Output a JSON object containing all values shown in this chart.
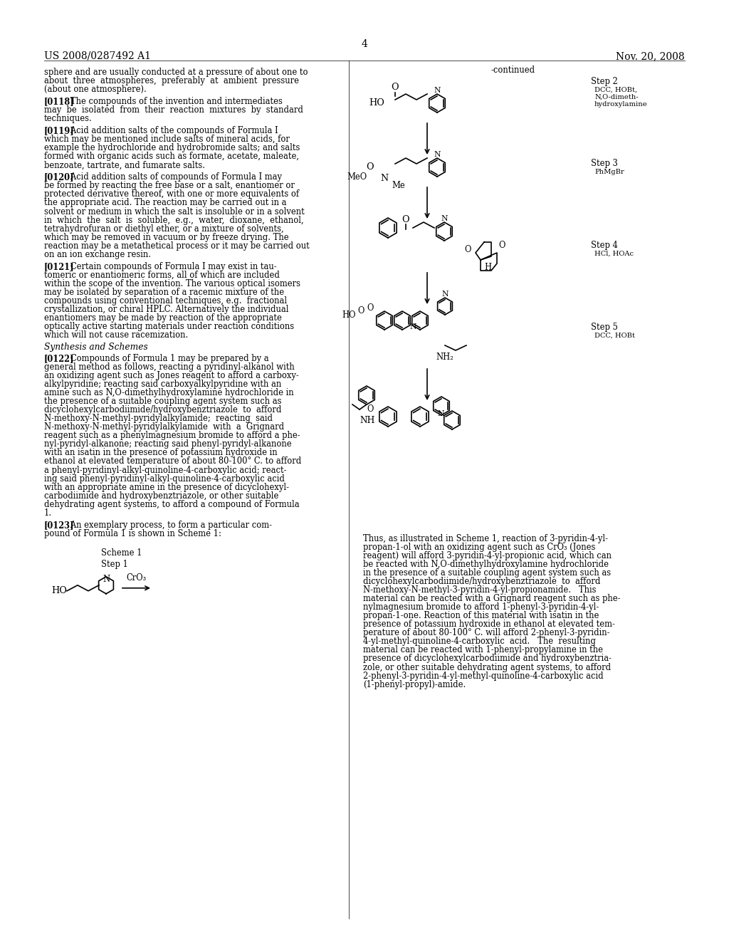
{
  "page_number": "4",
  "patent_number": "US 2008/0287492 A1",
  "patent_date": "Nov. 20, 2008",
  "background_color": "#ffffff",
  "text_color": "#000000",
  "figsize": [
    10.24,
    13.2
  ],
  "dpi": 100,
  "left_column_text": [
    {
      "type": "paragraph",
      "text": "sphere and are usually conducted at a pressure of about one to\nabout  three  atmospheres,  preferably  at  ambient  pressure\n(about one atmosphere)."
    },
    {
      "type": "paragraph_bold_start",
      "bold": "[0118]",
      "text": "   The compounds of the invention and intermediates\nmay  be  isolated  from  their  reaction  mixtures  by  standard\ntechniques."
    },
    {
      "type": "paragraph_bold_start",
      "bold": "[0119]",
      "text": "   Acid addition salts of the compounds of Formula I\nwhich may be mentioned include salts of mineral acids, for\nexample the hydrochloride and hydrobromide salts; and salts\nformed with organic acids such as formate, acetate, maleate,\nbenzoate, tartrate, and fumarate salts."
    },
    {
      "type": "paragraph_bold_start",
      "bold": "[0120]",
      "text": "   Acid addition salts of compounds of Formula I may\nbe formed by reacting the free base or a salt, enantiomer or\nprotected derivative thereof, with one or more equivalents of\nthe appropriate acid. The reaction may be carried out in a\nsolvent or medium in which the salt is insoluble or in a solvent\nin  which  the  salt  is  soluble,  e.g.,  water,  dioxane,  ethanol,\ntetrahydrofuran or diethyl ether, or a mixture of solvents,\nwhich may be removed in vacuum or by freeze drying. The\nreaction may be a metathetical process or it may be carried out\non an ion exchange resin."
    },
    {
      "type": "paragraph_bold_start",
      "bold": "[0121]",
      "text": "   Certain compounds of Formula I may exist in tau-\ntomeric or enantiomeric forms, all of which are included\nwithin the scope of the invention. The various optical isomers\nmay be isolated by separation of a racemic mixture of the\ncompounds using conventional techniques, e.g.  fractional\ncrystallization, or chiral HPLC. Alternatively the individual\nenantiomers may be made by reaction of the appropriate\noptically active starting materials under reaction conditions\nwhich will not cause racemization."
    },
    {
      "type": "section_header",
      "text": "Synthesis and Schemes"
    },
    {
      "type": "paragraph_bold_start",
      "bold": "[0122]",
      "text": "   Compounds of Formula 1 may be prepared by a\ngeneral method as follows, reacting a pyridinyl-alkanol with\nan oxidizing agent such as Jones reagent to afford a carboxy-\nalkylpyridine; reacting said carboxyalkylpyridine with an\namine such as N,O-dimethylhydroxylamine hydrochloride in\nthe presence of a suitable coupling agent system such as\ndicyclohexylcarbodiimide/hydroxybenztriazole  to  afford\nN-methoxy-N-methyl-pyridylalkylamide;  reacting  said\nN-methoxy-N-methyl-pyridylalkylamide  with  a  Grignard\nreagent such as a phenylmagnesium bromide to afford a phe-\nnyl-pyridyl-alkanone; reacting said phenyl-pyridyl-alkanone\nwith an isatin in the presence of potassium hydroxide in\nethanol at elevated temperature of about 80-100° C. to afford\na phenyl-pyridinyl-alkyl-quinoline-4-carboxylic acid; react-\ning said phenyl-pyridinyl-alkyl-quinoline-4-carboxylic acid\nwith an appropriate amine in the presence of dicyclohexyl-\ncarbodiimide and hydroxybenztriazole, or other suitable\ndehydrating agent systems, to afford a compound of Formula\n1."
    },
    {
      "type": "paragraph_bold_start",
      "bold": "[0123]",
      "text": "   An exemplary process, to form a particular com-\npound of Formula 1 is shown in Scheme 1:"
    }
  ],
  "right_column_text": [
    {
      "type": "continued_label",
      "text": "-continued"
    },
    {
      "type": "scheme_steps",
      "steps": [
        {
          "label": "Step 2",
          "reagents": "DCC, HOBt,\nN,O-dimeth-\nhydroxylamine"
        },
        {
          "label": "Step 3",
          "reagents": "PhMgBr"
        },
        {
          "label": "Step 4",
          "reagents": "HCl, HOAc"
        },
        {
          "label": "Step 5",
          "reagents": "DCC, HOBt"
        }
      ]
    },
    {
      "type": "paragraph",
      "text": "Thus, as illustrated in Scheme 1, reaction of 3-pyridin-4-yl-\npropan-1-ol with an oxidizing agent such as CrO₃ (Jones\nreagent) will afford 3-pyridin-4-yl-propionic acid, which can\nbe reacted with N,O-dimethylhydroxylamine hydrochloride\nin the presence of a suitable coupling agent system such as\ndicyclohexylcarbodiimide/hydroxybenztriazole  to  afford\nN-methoxy-N-methyl-3-pyridin-4-yl-propionamide.   This\nmaterial can be reacted with a Grignard reagent such as phe-\nnylmagnesium bromide to afford 1-phenyl-3-pyridin-4-yl-\npropan-1-one. Reaction of this material with isatin in the\npresence of potassium hydroxide in ethanol at elevated tem-\nperature of about 80-100° C. will afford 2-phenyl-3-pyridin-\n4-yl-methyl-quinoline-4-carboxylic  acid.   The  resulting\nmaterial can be reacted with 1-phenyl-propylamine in the\npresence of dicyclohexylcarbodiimide and hydroxybenztria-\nzole, or other suitable dehydrating agent systems, to afford\n2-phenyl-3-pyridin-4-yl-methyl-quinoline-4-carboxylic acid\n(1-phenyl-propyl)-amide."
    }
  ]
}
